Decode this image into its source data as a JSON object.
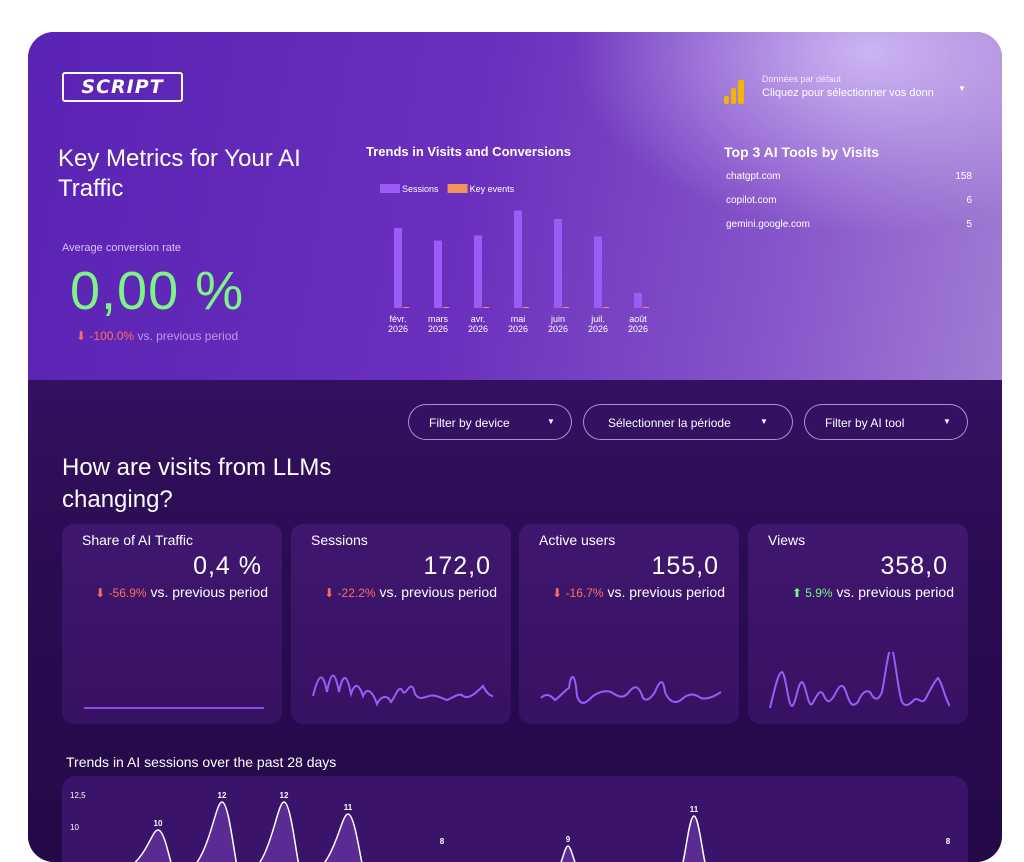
{
  "logo": {
    "text": "SCRIPT"
  },
  "data_source": {
    "title": "Données par défaut",
    "subtitle": "Cliquez pour sélectionner vos donn",
    "icon": "analytics-bars-icon"
  },
  "key_metrics": {
    "title": "Key Metrics for Your AI Traffic",
    "avg_label": "Average conversion rate",
    "avg_value": "0,00 %",
    "avg_delta": "-100.0%",
    "avg_delta_suffix": " vs. previous period"
  },
  "trends_visits": {
    "title": "Trends in Visits and Conversions",
    "legend": [
      "Sessions",
      "Key events"
    ]
  },
  "top3": {
    "title": "Top 3 AI Tools by Visits",
    "rows": [
      {
        "name": "chatgpt.com",
        "value": "158"
      },
      {
        "name": "copilot.com",
        "value": "6"
      },
      {
        "name": "gemini.google.com",
        "value": "5"
      }
    ]
  },
  "filters": {
    "device": "Filter by device",
    "period": "Sélectionner la période",
    "tool": "Filter by AI tool"
  },
  "question": {
    "title": "How are visits from LLMs changing?"
  },
  "cards": [
    {
      "title": "Share of AI Traffic",
      "value": "0,4 %",
      "delta": "-56.9%",
      "suffix": " vs. previous period",
      "direction": "down"
    },
    {
      "title": "Sessions",
      "value": "172,0",
      "delta": "-22.2%",
      "suffix": " vs. previous period",
      "direction": "down"
    },
    {
      "title": "Active users",
      "value": "155,0",
      "delta": "-16.7%",
      "suffix": " vs. previous period",
      "direction": "down"
    },
    {
      "title": "Views",
      "value": "358,0",
      "delta": "5.9%",
      "suffix": " vs. previous period",
      "direction": "up"
    }
  ],
  "trend28": {
    "title": "Trends in AI sessions over the past 28 days"
  },
  "chart_data": [
    {
      "type": "bar",
      "title": "Trends in Visits and Conversions",
      "categories": [
        "févr. 2026",
        "mars 2026",
        "avr. 2026",
        "mai 2026",
        "juin 2026",
        "juil. 2026",
        "août 2026"
      ],
      "series": [
        {
          "name": "Sessions",
          "values": [
            160,
            135,
            145,
            195,
            178,
            143,
            30
          ]
        },
        {
          "name": "Key events",
          "values": [
            0,
            0,
            0,
            0,
            0,
            0,
            0
          ]
        }
      ],
      "legend": "top-left",
      "colors": [
        "#9b5cf5",
        "#f0945a"
      ]
    },
    {
      "type": "area",
      "title": "Trends in AI sessions over the past 28 days",
      "y_ticks": [
        "12,5",
        "10"
      ],
      "point_labels": [
        "10",
        "12",
        "12",
        "11",
        "8",
        "9",
        "11",
        "8"
      ]
    }
  ]
}
